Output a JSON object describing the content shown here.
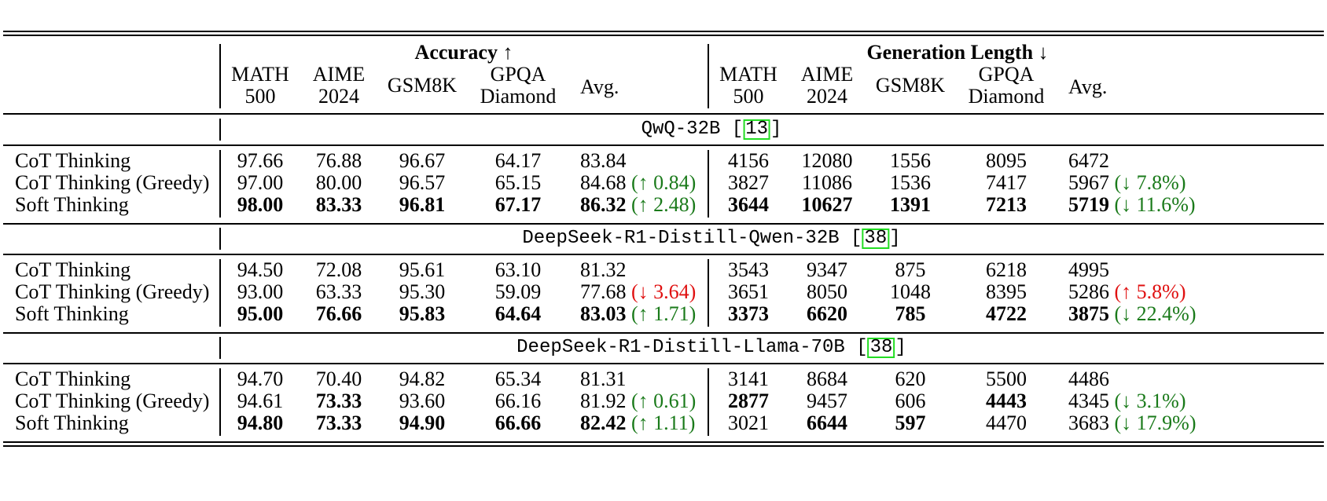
{
  "header": {
    "group_accuracy": "Accuracy ↑",
    "group_length": "Generation Length ↓",
    "columns": [
      {
        "l1": "MATH",
        "l2": "500"
      },
      {
        "l1": "AIME",
        "l2": "2024"
      },
      {
        "l1": "GSM8K",
        "l2": ""
      },
      {
        "l1": "GPQA",
        "l2": "Diamond"
      },
      {
        "l1": "Avg.",
        "l2": ""
      }
    ]
  },
  "sections": [
    {
      "model": "QwQ-32B",
      "ref": "13",
      "rows": [
        {
          "method": "CoT Thinking",
          "acc": [
            "97.66",
            "76.88",
            "96.67",
            "64.17",
            "83.84"
          ],
          "acc_delta": "",
          "len": [
            "4156",
            "12080",
            "1556",
            "8095",
            "6472"
          ],
          "len_delta": ""
        },
        {
          "method": "CoT Thinking (Greedy)",
          "acc": [
            "97.00",
            "80.00",
            "96.57",
            "65.15",
            "84.68"
          ],
          "acc_delta": "(↑ 0.84)",
          "len": [
            "3827",
            "11086",
            "1536",
            "7417",
            "5967"
          ],
          "len_delta": "(↓ 7.8%)"
        },
        {
          "method": "Soft Thinking",
          "acc": [
            "98.00",
            "83.33",
            "96.81",
            "67.17",
            "86.32"
          ],
          "acc_delta": "(↑ 2.48)",
          "len": [
            "3644",
            "10627",
            "1391",
            "7213",
            "5719"
          ],
          "len_delta": "(↓ 11.6%)"
        }
      ]
    },
    {
      "model": "DeepSeek-R1-Distill-Qwen-32B",
      "ref": "38",
      "rows": [
        {
          "method": "CoT Thinking",
          "acc": [
            "94.50",
            "72.08",
            "95.61",
            "63.10",
            "81.32"
          ],
          "acc_delta": "",
          "len": [
            "3543",
            "9347",
            "875",
            "6218",
            "4995"
          ],
          "len_delta": ""
        },
        {
          "method": "CoT Thinking (Greedy)",
          "acc": [
            "93.00",
            "63.33",
            "95.30",
            "59.09",
            "77.68"
          ],
          "acc_delta": "(↓ 3.64)",
          "len": [
            "3651",
            "8050",
            "1048",
            "8395",
            "5286"
          ],
          "len_delta": "(↑ 5.8%)"
        },
        {
          "method": "Soft Thinking",
          "acc": [
            "95.00",
            "76.66",
            "95.83",
            "64.64",
            "83.03"
          ],
          "acc_delta": "(↑ 1.71)",
          "len": [
            "3373",
            "6620",
            "785",
            "4722",
            "3875"
          ],
          "len_delta": "(↓ 22.4%)"
        }
      ]
    },
    {
      "model": "DeepSeek-R1-Distill-Llama-70B",
      "ref": "38",
      "rows": [
        {
          "method": "CoT Thinking",
          "acc": [
            "94.70",
            "70.40",
            "94.82",
            "65.34",
            "81.31"
          ],
          "acc_delta": "",
          "len": [
            "3141",
            "8684",
            "620",
            "5500",
            "4486"
          ],
          "len_delta": ""
        },
        {
          "method": "CoT Thinking (Greedy)",
          "acc": [
            "94.61",
            "73.33",
            "93.60",
            "66.16",
            "81.92"
          ],
          "acc_delta": "(↑ 0.61)",
          "len": [
            "2877",
            "9457",
            "606",
            "4443",
            "4345"
          ],
          "len_delta": "(↓ 3.1%)"
        },
        {
          "method": "Soft Thinking",
          "acc": [
            "94.80",
            "73.33",
            "94.90",
            "66.66",
            "82.42"
          ],
          "acc_delta": "(↑ 1.11)",
          "len": [
            "3021",
            "6644",
            "597",
            "4470",
            "3683"
          ],
          "len_delta": "(↓ 17.9%)"
        }
      ]
    }
  ],
  "bold": [
    {
      "acc": [
        true,
        true,
        true,
        true,
        true
      ],
      "len": [
        true,
        true,
        true,
        true,
        true
      ]
    },
    {
      "acc": [
        true,
        true,
        true,
        true,
        true
      ],
      "len": [
        true,
        true,
        true,
        true,
        true
      ]
    },
    {
      "acc": [
        true,
        true,
        false,
        true,
        true
      ],
      "len": [
        false,
        true,
        true,
        false,
        false
      ]
    }
  ],
  "bold_extra": [
    {
      "row": 1,
      "acc": [
        false,
        true,
        false,
        false,
        false
      ],
      "len": [
        true,
        false,
        false,
        true,
        false
      ]
    }
  ],
  "colors": {
    "good": "#1a7a1a",
    "bad": "#e01010",
    "ref_box": "#22dd22"
  }
}
